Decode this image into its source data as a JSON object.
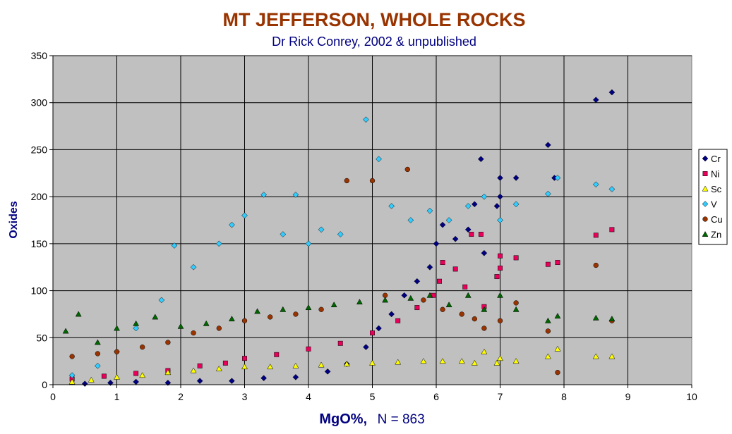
{
  "chart_data": {
    "type": "scatter",
    "title": "MT JEFFERSON, WHOLE ROCKS",
    "subtitle": "Dr Rick Conrey, 2002 & unpublished",
    "xlabel": "MgO%,",
    "xlabel_note": "N = 863",
    "ylabel": "Oxides",
    "xlim": [
      0,
      10
    ],
    "ylim": [
      0,
      350
    ],
    "x_ticks": [
      "0",
      "1",
      "2",
      "3",
      "4",
      "5",
      "6",
      "7",
      "8",
      "9",
      "10"
    ],
    "y_ticks": [
      "0",
      "50",
      "100",
      "150",
      "200",
      "250",
      "300",
      "350"
    ],
    "grid": true,
    "legend_position": "right",
    "plot_background": "#c0c0c0",
    "series": [
      {
        "name": "Cr",
        "marker": "diamond",
        "color": "#000080",
        "points": [
          [
            0.5,
            1
          ],
          [
            0.9,
            2
          ],
          [
            1.3,
            3
          ],
          [
            1.8,
            2
          ],
          [
            2.3,
            4
          ],
          [
            2.8,
            4
          ],
          [
            3.3,
            7
          ],
          [
            3.8,
            8
          ],
          [
            4.3,
            14
          ],
          [
            4.6,
            22
          ],
          [
            4.9,
            40
          ],
          [
            5.1,
            60
          ],
          [
            5.3,
            75
          ],
          [
            5.5,
            95
          ],
          [
            5.7,
            110
          ],
          [
            5.9,
            125
          ],
          [
            6.0,
            150
          ],
          [
            6.1,
            170
          ],
          [
            6.3,
            155
          ],
          [
            6.5,
            165
          ],
          [
            6.6,
            192
          ],
          [
            6.7,
            240
          ],
          [
            6.75,
            140
          ],
          [
            6.95,
            190
          ],
          [
            7.0,
            200
          ],
          [
            7.0,
            220
          ],
          [
            7.25,
            220
          ],
          [
            7.75,
            255
          ],
          [
            7.85,
            220
          ],
          [
            8.5,
            303
          ],
          [
            8.75,
            311
          ]
        ]
      },
      {
        "name": "Ni",
        "marker": "square",
        "color": "#e8005a",
        "points": [
          [
            0.3,
            6
          ],
          [
            0.8,
            9
          ],
          [
            1.3,
            12
          ],
          [
            1.8,
            15
          ],
          [
            2.3,
            20
          ],
          [
            2.7,
            23
          ],
          [
            3.0,
            28
          ],
          [
            3.5,
            32
          ],
          [
            4.0,
            38
          ],
          [
            4.5,
            44
          ],
          [
            5.0,
            55
          ],
          [
            5.4,
            68
          ],
          [
            5.7,
            82
          ],
          [
            5.95,
            95
          ],
          [
            6.05,
            110
          ],
          [
            6.1,
            130
          ],
          [
            6.3,
            123
          ],
          [
            6.45,
            104
          ],
          [
            6.55,
            160
          ],
          [
            6.7,
            160
          ],
          [
            6.75,
            83
          ],
          [
            6.95,
            115
          ],
          [
            7.0,
            124
          ],
          [
            7.0,
            137
          ],
          [
            7.25,
            135
          ],
          [
            7.75,
            128
          ],
          [
            7.9,
            130
          ],
          [
            8.5,
            159
          ],
          [
            8.75,
            165
          ]
        ]
      },
      {
        "name": "Sc",
        "marker": "triangle",
        "color": "#ffff00",
        "points": [
          [
            0.3,
            3
          ],
          [
            0.6,
            5
          ],
          [
            1.0,
            8
          ],
          [
            1.4,
            10
          ],
          [
            1.8,
            13
          ],
          [
            2.2,
            15
          ],
          [
            2.6,
            17
          ],
          [
            3.0,
            19
          ],
          [
            3.4,
            19
          ],
          [
            3.8,
            20
          ],
          [
            4.2,
            21
          ],
          [
            4.6,
            22
          ],
          [
            5.0,
            23
          ],
          [
            5.4,
            24
          ],
          [
            5.8,
            25
          ],
          [
            6.1,
            25
          ],
          [
            6.4,
            25
          ],
          [
            6.6,
            23
          ],
          [
            6.75,
            35
          ],
          [
            6.95,
            23
          ],
          [
            7.0,
            28
          ],
          [
            7.25,
            25
          ],
          [
            7.75,
            30
          ],
          [
            7.9,
            38
          ],
          [
            8.5,
            30
          ],
          [
            8.75,
            30
          ]
        ]
      },
      {
        "name": "V",
        "marker": "diamond",
        "color": "#33ccff",
        "points": [
          [
            0.3,
            10
          ],
          [
            0.7,
            20
          ],
          [
            1.0,
            35
          ],
          [
            1.3,
            60
          ],
          [
            1.7,
            90
          ],
          [
            1.9,
            148
          ],
          [
            2.2,
            125
          ],
          [
            2.6,
            150
          ],
          [
            2.8,
            170
          ],
          [
            3.0,
            180
          ],
          [
            3.3,
            202
          ],
          [
            3.6,
            160
          ],
          [
            3.8,
            202
          ],
          [
            4.0,
            150
          ],
          [
            4.2,
            165
          ],
          [
            4.5,
            160
          ],
          [
            4.9,
            282
          ],
          [
            5.1,
            240
          ],
          [
            5.3,
            190
          ],
          [
            5.6,
            175
          ],
          [
            5.9,
            185
          ],
          [
            6.2,
            175
          ],
          [
            6.5,
            190
          ],
          [
            6.75,
            200
          ],
          [
            7.0,
            175
          ],
          [
            7.25,
            192
          ],
          [
            7.75,
            203
          ],
          [
            7.9,
            220
          ],
          [
            8.5,
            213
          ],
          [
            8.75,
            208
          ]
        ]
      },
      {
        "name": "Cu",
        "marker": "circle",
        "color": "#993300",
        "points": [
          [
            0.3,
            30
          ],
          [
            0.7,
            33
          ],
          [
            1.0,
            35
          ],
          [
            1.4,
            40
          ],
          [
            1.8,
            45
          ],
          [
            2.2,
            55
          ],
          [
            2.6,
            60
          ],
          [
            3.0,
            68
          ],
          [
            3.4,
            72
          ],
          [
            3.8,
            75
          ],
          [
            4.2,
            80
          ],
          [
            4.6,
            217
          ],
          [
            5.0,
            217
          ],
          [
            5.2,
            95
          ],
          [
            5.55,
            229
          ],
          [
            5.8,
            90
          ],
          [
            6.1,
            80
          ],
          [
            6.4,
            75
          ],
          [
            6.6,
            70
          ],
          [
            6.75,
            60
          ],
          [
            7.0,
            68
          ],
          [
            7.25,
            87
          ],
          [
            7.75,
            57
          ],
          [
            7.9,
            13
          ],
          [
            8.5,
            127
          ],
          [
            8.75,
            68
          ]
        ]
      },
      {
        "name": "Zn",
        "marker": "triangle",
        "color": "#006600",
        "points": [
          [
            0.2,
            57
          ],
          [
            0.4,
            75
          ],
          [
            0.7,
            45
          ],
          [
            1.0,
            60
          ],
          [
            1.3,
            65
          ],
          [
            1.6,
            72
          ],
          [
            2.0,
            62
          ],
          [
            2.4,
            65
          ],
          [
            2.8,
            70
          ],
          [
            3.2,
            78
          ],
          [
            3.6,
            80
          ],
          [
            4.0,
            82
          ],
          [
            4.4,
            85
          ],
          [
            4.8,
            88
          ],
          [
            5.2,
            90
          ],
          [
            5.6,
            92
          ],
          [
            5.9,
            95
          ],
          [
            6.2,
            85
          ],
          [
            6.5,
            95
          ],
          [
            6.75,
            80
          ],
          [
            7.0,
            95
          ],
          [
            7.25,
            80
          ],
          [
            7.75,
            68
          ],
          [
            7.9,
            73
          ],
          [
            8.5,
            71
          ],
          [
            8.75,
            70
          ]
        ]
      }
    ]
  }
}
